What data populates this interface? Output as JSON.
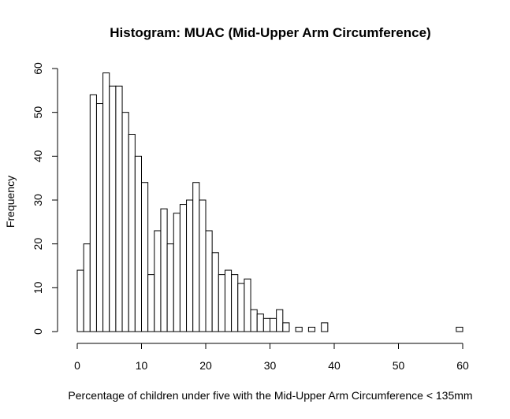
{
  "chart_data": {
    "type": "histogram",
    "title": "Histogram: MUAC (Mid-Upper Arm Circumference)",
    "xlabel": "Percentage of children under five with the Mid-Upper Arm Circumference  < 135mm",
    "ylabel": "Frequency",
    "bin_width": 1,
    "bins_start": 0,
    "xlim": [
      0,
      60
    ],
    "ylim": [
      0,
      60
    ],
    "xticks": [
      0,
      10,
      20,
      30,
      40,
      50,
      60
    ],
    "yticks": [
      0,
      10,
      20,
      30,
      40,
      50,
      60
    ],
    "grid": false,
    "values": [
      14,
      20,
      54,
      52,
      59,
      56,
      56,
      50,
      45,
      40,
      34,
      13,
      23,
      28,
      20,
      27,
      29,
      30,
      34,
      30,
      23,
      18,
      13,
      14,
      13,
      11,
      12,
      5,
      4,
      3,
      3,
      5,
      2,
      0,
      1,
      0,
      1,
      0,
      2,
      0,
      0,
      0,
      0,
      0,
      0,
      0,
      0,
      0,
      0,
      0,
      0,
      0,
      0,
      0,
      0,
      0,
      0,
      0,
      0,
      1
    ],
    "fill": "#ffffff",
    "stroke": "#000000"
  }
}
